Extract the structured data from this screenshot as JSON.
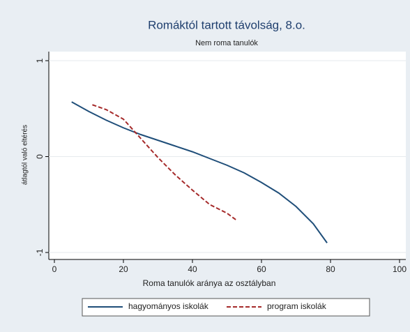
{
  "chart_data": {
    "type": "line",
    "title": "Romáktól tartott távolság, 8.o.",
    "subtitle": "Nem roma tanulók",
    "x_label": "Roma tanulók aránya az osztályban",
    "y_label": "átlagtól való eltérés",
    "xlim": [
      0,
      100
    ],
    "xticks": [
      0,
      20,
      40,
      60,
      80,
      100
    ],
    "ylim": [
      -1,
      1
    ],
    "yticks": [
      -1,
      0,
      1
    ],
    "grid": true,
    "legend": "bottom",
    "series": [
      {
        "name": "hagyományos iskolák",
        "color": "#1f4e79",
        "dash": "solid",
        "x": [
          5,
          10,
          15,
          20,
          25,
          30,
          35,
          40,
          45,
          50,
          55,
          60,
          65,
          70,
          75,
          79
        ],
        "values": [
          0.57,
          0.47,
          0.38,
          0.3,
          0.23,
          0.17,
          0.11,
          0.05,
          -0.02,
          -0.09,
          -0.17,
          -0.27,
          -0.38,
          -0.52,
          -0.7,
          -0.9
        ]
      },
      {
        "name": "program iskolák",
        "color": "#a52a2a",
        "dash": "dashed",
        "x": [
          11,
          15,
          20,
          25,
          30,
          35,
          40,
          45,
          50,
          53
        ],
        "values": [
          0.54,
          0.49,
          0.39,
          0.19,
          -0.01,
          -0.19,
          -0.35,
          -0.5,
          -0.59,
          -0.67
        ]
      }
    ]
  }
}
